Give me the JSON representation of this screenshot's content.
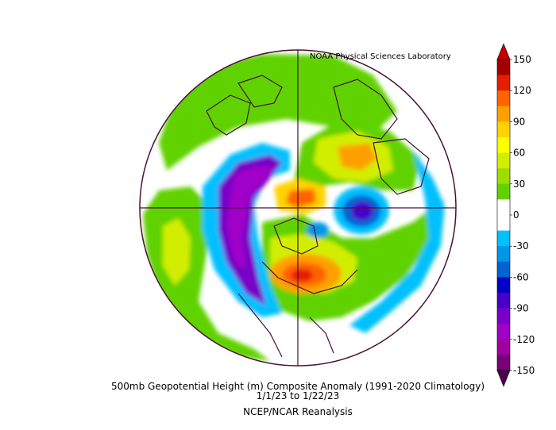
{
  "credit": "NOAA Physical Sciences Laboratory",
  "title_line1": "500mb Geopotential Height (m) Composite Anomaly (1991-2020 Climatology)",
  "title_line2": "1/1/23  to 1/22/23",
  "title_line3": "NCEP/NCAR Reanalysis",
  "colorbar": {
    "tick_labels": [
      "150",
      "120",
      "90",
      "60",
      "30",
      "0",
      "-30",
      "-60",
      "-90",
      "-120",
      "-150"
    ],
    "colors_top_to_bottom": [
      "#a50000",
      "#e61e00",
      "#ff6400",
      "#ffa000",
      "#ffd200",
      "#ffff00",
      "#d2ee00",
      "#9fdc00",
      "#61d200",
      "#ffffff",
      "#ffffff",
      "#00c0ff",
      "#0096e6",
      "#0064d2",
      "#0000c8",
      "#4600c8",
      "#7800c8",
      "#a000c8",
      "#a000a0",
      "#780078"
    ],
    "tip_top_color": "#c80000",
    "tip_bottom_color": "#500050"
  },
  "map": {
    "projection": "north-polar-stereographic",
    "background_color": "#ffffff",
    "outline_color": "#4a0f3a"
  }
}
